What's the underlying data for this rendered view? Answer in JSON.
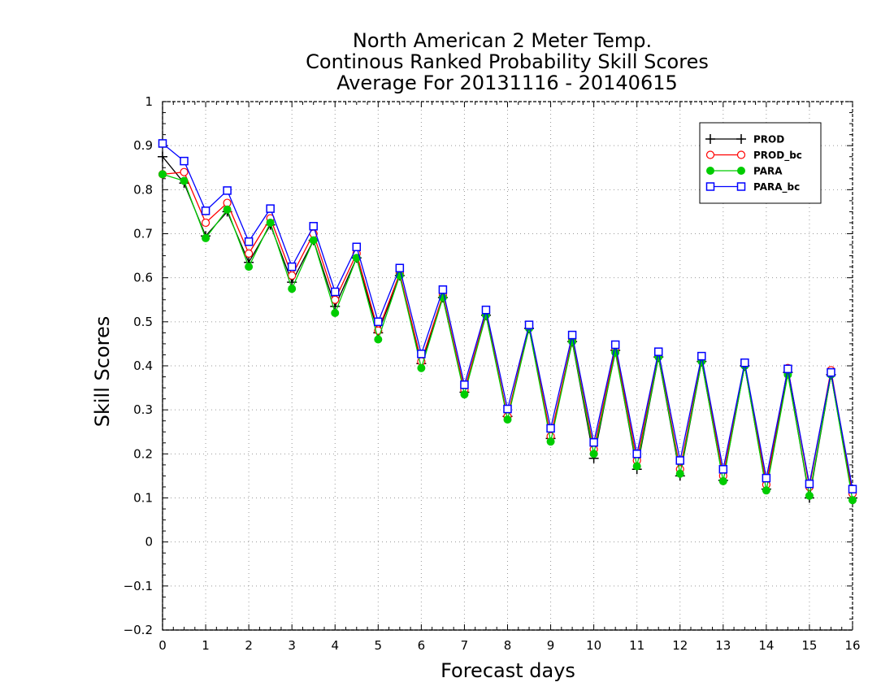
{
  "chart_data": {
    "type": "line",
    "title_lines": [
      "North American 2 Meter Temp.",
      "Continous Ranked Probability Skill Scores",
      "Average For 20131116 - 20140615"
    ],
    "xlabel": "Forecast days",
    "ylabel": "Skill Scores",
    "xlim": [
      0,
      16
    ],
    "ylim": [
      -0.2,
      1
    ],
    "x_ticks": [
      0,
      1,
      2,
      3,
      4,
      5,
      6,
      7,
      8,
      9,
      10,
      11,
      12,
      13,
      14,
      15,
      16
    ],
    "x_tick_labels": [
      "0",
      "1",
      "2",
      "3",
      "4",
      "5",
      "6",
      "7",
      "8",
      "9",
      "10",
      "11",
      "12",
      "13",
      "14",
      "15",
      "16"
    ],
    "y_ticks": [
      -0.2,
      -0.1,
      0,
      0.1,
      0.2,
      0.3,
      0.4,
      0.5,
      0.6,
      0.7,
      0.8,
      0.9,
      1
    ],
    "y_tick_labels": [
      "−0.2",
      "−0.1",
      "0",
      "0.1",
      "0.2",
      "0.3",
      "0.4",
      "0.5",
      "0.6",
      "0.7",
      "0.8",
      "0.9",
      "1"
    ],
    "grid": true,
    "legend_position": "top-right",
    "x": [
      0,
      0.5,
      1,
      1.5,
      2,
      2.5,
      3,
      3.5,
      4,
      4.5,
      5,
      5.5,
      6,
      6.5,
      7,
      7.5,
      8,
      8.5,
      9,
      9.5,
      10,
      10.5,
      11,
      11.5,
      12,
      12.5,
      13,
      13.5,
      14,
      14.5,
      15,
      15.5,
      16
    ],
    "series": [
      {
        "name": "PROD",
        "color": "#000000",
        "marker": "plus",
        "values": [
          0.875,
          0.815,
          0.695,
          0.75,
          0.635,
          0.72,
          0.59,
          0.685,
          0.535,
          0.645,
          0.475,
          0.605,
          0.405,
          0.555,
          0.34,
          0.515,
          0.285,
          0.485,
          0.235,
          0.455,
          0.19,
          0.435,
          0.165,
          0.42,
          0.15,
          0.41,
          0.14,
          0.4,
          0.12,
          0.385,
          0.1,
          0.38,
          0.1
        ]
      },
      {
        "name": "PROD_bc",
        "color": "#ff0000",
        "marker": "circle-open",
        "values": [
          0.835,
          0.84,
          0.725,
          0.77,
          0.655,
          0.735,
          0.605,
          0.7,
          0.55,
          0.655,
          0.48,
          0.61,
          0.41,
          0.56,
          0.345,
          0.52,
          0.285,
          0.49,
          0.24,
          0.46,
          0.21,
          0.44,
          0.185,
          0.425,
          0.165,
          0.415,
          0.15,
          0.405,
          0.13,
          0.395,
          0.125,
          0.39,
          0.11
        ]
      },
      {
        "name": "PARA",
        "color": "#00cc00",
        "marker": "circle-filled",
        "values": [
          0.835,
          0.82,
          0.69,
          0.755,
          0.625,
          0.725,
          0.575,
          0.685,
          0.52,
          0.645,
          0.46,
          0.605,
          0.395,
          0.555,
          0.335,
          0.515,
          0.278,
          0.485,
          0.228,
          0.455,
          0.2,
          0.43,
          0.172,
          0.42,
          0.155,
          0.41,
          0.138,
          0.4,
          0.117,
          0.38,
          0.105,
          0.38,
          0.095
        ]
      },
      {
        "name": "PARA_bc",
        "color": "#0000ff",
        "marker": "square-open",
        "values": [
          0.905,
          0.865,
          0.752,
          0.798,
          0.682,
          0.757,
          0.625,
          0.717,
          0.568,
          0.67,
          0.5,
          0.622,
          0.427,
          0.573,
          0.357,
          0.527,
          0.302,
          0.493,
          0.258,
          0.47,
          0.226,
          0.448,
          0.2,
          0.432,
          0.185,
          0.422,
          0.165,
          0.407,
          0.145,
          0.393,
          0.132,
          0.385,
          0.12
        ]
      }
    ]
  }
}
